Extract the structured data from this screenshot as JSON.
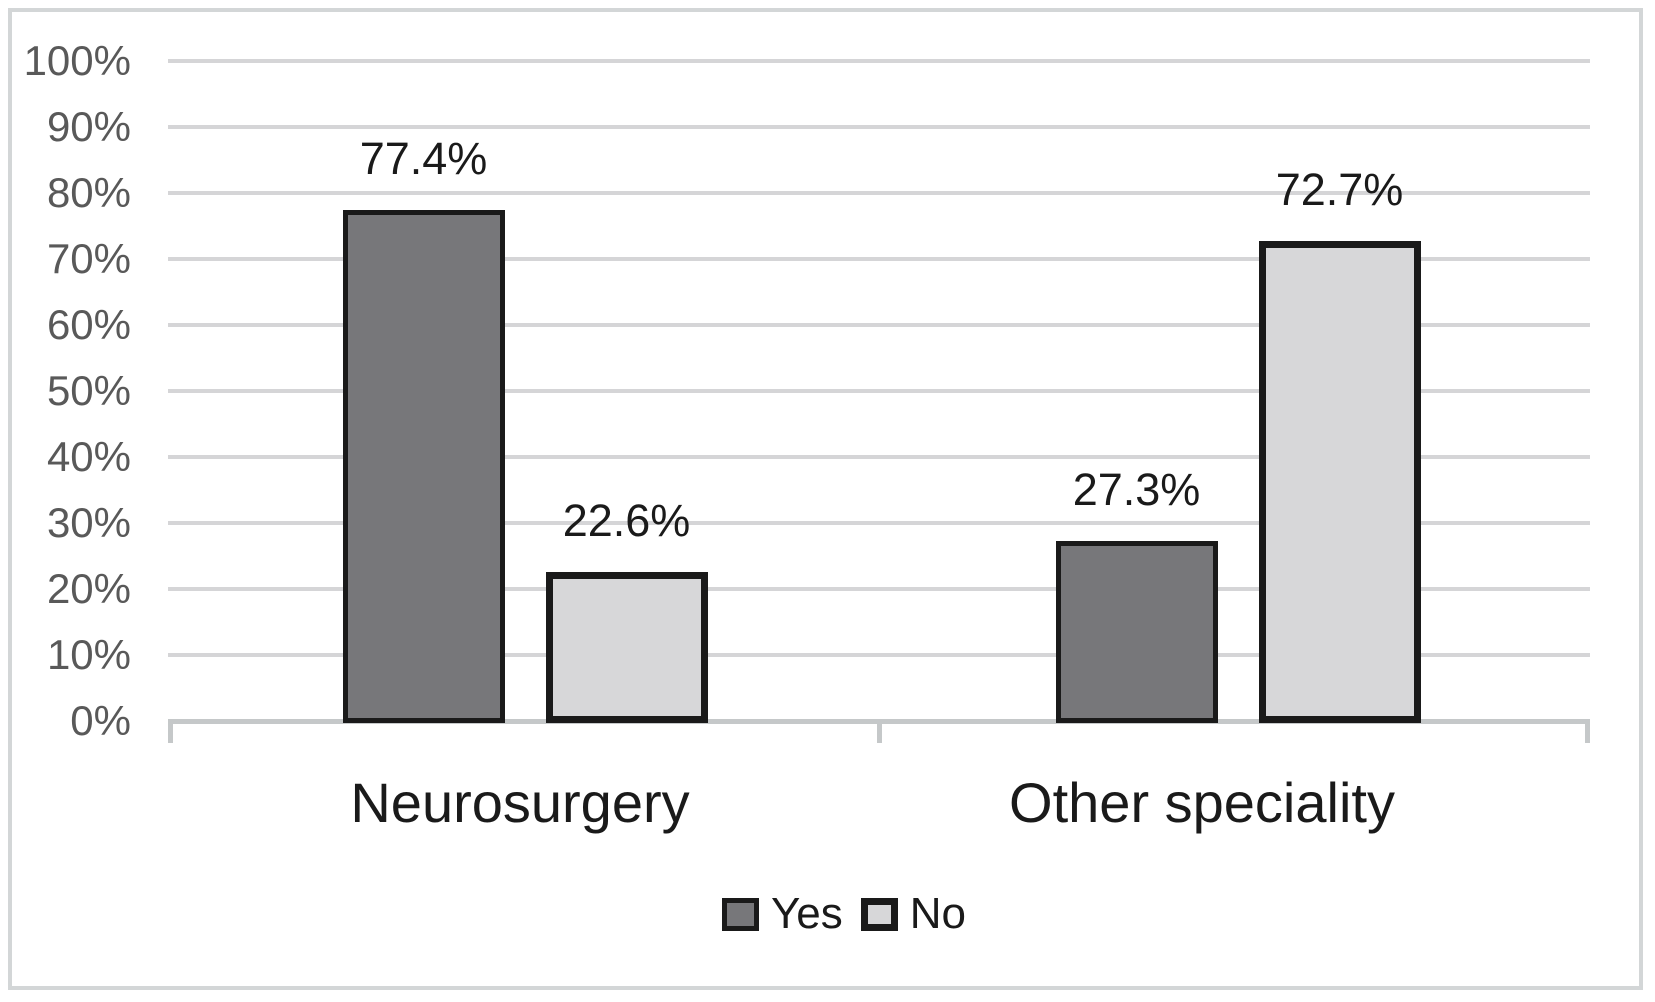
{
  "chart_data": {
    "type": "bar",
    "categories": [
      "Neurosurgery",
      "Other speciality"
    ],
    "series": [
      {
        "name": "Yes",
        "values": [
          77.4,
          27.3
        ],
        "labels": [
          "77.4%",
          "27.3%"
        ],
        "fill": "#77777a",
        "border_color": "#1a1a1a"
      },
      {
        "name": "No",
        "values": [
          22.6,
          72.7
        ],
        "labels": [
          "22.6%",
          "72.7%"
        ],
        "fill": "#d7d7d9",
        "border_color": "#1a1a1a"
      }
    ],
    "title": "",
    "xlabel": "",
    "ylabel": "",
    "ylim": [
      0,
      100
    ],
    "y_tick_step": 10,
    "y_tick_labels": [
      "0%",
      "10%",
      "20%",
      "30%",
      "40%",
      "50%",
      "60%",
      "70%",
      "80%",
      "90%",
      "100%"
    ],
    "grid": true,
    "legend_position": "bottom",
    "legend_entries": [
      "Yes",
      "No"
    ]
  },
  "colors": {
    "background": "#ffffff",
    "frame_border": "#d3d6d7",
    "gridline": "#d5d5d7",
    "axis_line": "#c5c8c9",
    "y_tick_text": "#595959",
    "label_text": "#1a1a1a",
    "bar_yes_fill": "#77777a",
    "bar_no_fill": "#d7d7d9",
    "bar_border": "#1a1a1a"
  }
}
